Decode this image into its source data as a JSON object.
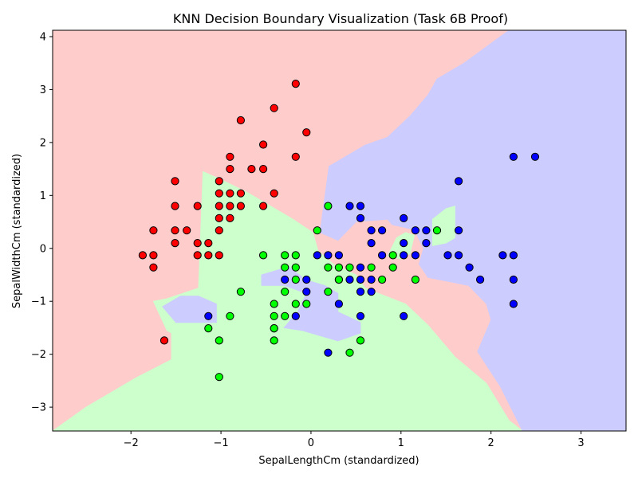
{
  "chart_data": {
    "type": "scatter",
    "title": "KNN Decision Boundary Visualization (Task 6B Proof)",
    "xlabel": "SepalLengthCm (standardized)",
    "ylabel": "SepalWidthCm (standardized)",
    "xlim": [
      -2.87,
      3.5
    ],
    "ylim": [
      -3.45,
      4.12
    ],
    "xticks": [
      -2,
      -1,
      0,
      1,
      2,
      3
    ],
    "yticks": [
      -3,
      -2,
      -1,
      0,
      1,
      2,
      3,
      4
    ],
    "xtick_labels": [
      "−2",
      "−1",
      "0",
      "1",
      "2",
      "3"
    ],
    "ytick_labels": [
      "−3",
      "−2",
      "−1",
      "0",
      "1",
      "2",
      "3",
      "4"
    ],
    "grid": false,
    "legend": "none",
    "region_colors": {
      "red": "#ffcccc",
      "green": "#ccffcc",
      "blue": "#ccccff"
    },
    "point_colors": {
      "red": "#ff0000",
      "green": "#00ff00",
      "blue": "#0000ff"
    },
    "regions": [
      {
        "class": "green",
        "polygon": [
          [
            -2.87,
            -3.45
          ],
          [
            2.35,
            -3.45
          ],
          [
            2.2,
            -3.25
          ],
          [
            1.95,
            -2.55
          ],
          [
            1.6,
            -2.05
          ],
          [
            1.3,
            -1.45
          ],
          [
            1.05,
            -1.05
          ],
          [
            0.6,
            -0.75
          ],
          [
            0.5,
            -0.5
          ],
          [
            0.25,
            -0.3
          ],
          [
            0.08,
            -0.05
          ],
          [
            0.02,
            0.3
          ],
          [
            -0.2,
            0.55
          ],
          [
            -0.45,
            0.8
          ],
          [
            -0.7,
            1.05
          ],
          [
            -1.0,
            1.3
          ],
          [
            -1.2,
            1.45
          ],
          [
            -1.25,
            -0.75
          ],
          [
            -1.6,
            -0.95
          ],
          [
            -1.75,
            -1.0
          ],
          [
            -1.6,
            -1.55
          ],
          [
            -1.55,
            -1.6
          ],
          [
            -1.55,
            -2.1
          ],
          [
            -1.95,
            -2.45
          ],
          [
            -2.5,
            -3.0
          ]
        ]
      },
      {
        "class": "blue",
        "polygon": [
          [
            2.35,
            -3.45
          ],
          [
            3.5,
            -3.45
          ],
          [
            3.5,
            4.12
          ],
          [
            2.2,
            4.12
          ],
          [
            1.7,
            3.5
          ],
          [
            1.4,
            3.2
          ],
          [
            1.3,
            2.9
          ],
          [
            1.1,
            2.5
          ],
          [
            0.85,
            2.1
          ],
          [
            0.6,
            1.95
          ],
          [
            0.45,
            1.8
          ],
          [
            0.2,
            1.55
          ],
          [
            0.1,
            0.3
          ],
          [
            0.3,
            0.15
          ],
          [
            0.5,
            0.5
          ],
          [
            0.85,
            0.55
          ],
          [
            0.9,
            0.45
          ],
          [
            1.15,
            0.35
          ],
          [
            1.25,
            0.0
          ],
          [
            1.2,
            -0.3
          ],
          [
            1.3,
            -0.55
          ],
          [
            1.75,
            -0.7
          ],
          [
            1.95,
            -1.05
          ],
          [
            2.0,
            -1.35
          ],
          [
            1.85,
            -1.95
          ],
          [
            2.1,
            -2.6
          ]
        ]
      },
      {
        "class": "blue",
        "polygon": [
          [
            -0.55,
            -0.5
          ],
          [
            -0.25,
            -0.35
          ],
          [
            -0.05,
            -0.6
          ],
          [
            0.15,
            -0.7
          ],
          [
            0.3,
            -0.85
          ],
          [
            0.3,
            -1.2
          ],
          [
            0.55,
            -1.4
          ],
          [
            0.55,
            -1.6
          ],
          [
            0.3,
            -1.75
          ],
          [
            -0.1,
            -1.55
          ],
          [
            -0.3,
            -1.5
          ],
          [
            -0.15,
            -1.2
          ],
          [
            -0.05,
            -0.85
          ],
          [
            -0.3,
            -0.7
          ],
          [
            -0.55,
            -0.7
          ]
        ]
      },
      {
        "class": "blue",
        "polygon": [
          [
            -1.65,
            -1.1
          ],
          [
            -1.45,
            -0.9
          ],
          [
            -1.25,
            -0.9
          ],
          [
            -1.05,
            -1.05
          ],
          [
            -1.05,
            -1.4
          ],
          [
            -1.5,
            -1.4
          ]
        ]
      },
      {
        "class": "green",
        "polygon": [
          [
            1.35,
            0.05
          ],
          [
            1.35,
            0.55
          ],
          [
            1.5,
            0.75
          ],
          [
            1.6,
            0.8
          ],
          [
            1.6,
            0.2
          ],
          [
            1.5,
            0.1
          ]
        ]
      },
      {
        "class": "green",
        "polygon": [
          [
            0.85,
            -0.15
          ],
          [
            0.95,
            0.2
          ],
          [
            1.05,
            0.3
          ],
          [
            1.15,
            0.25
          ],
          [
            1.1,
            -0.1
          ],
          [
            1.0,
            -0.2
          ]
        ]
      }
    ],
    "series": [
      {
        "class": "red",
        "points": [
          [
            -0.17,
            3.11
          ],
          [
            -0.41,
            2.65
          ],
          [
            -0.05,
            2.19
          ],
          [
            -0.78,
            2.42
          ],
          [
            -0.53,
            1.96
          ],
          [
            -0.17,
            1.73
          ],
          [
            -0.9,
            1.73
          ],
          [
            -0.9,
            1.5
          ],
          [
            -0.66,
            1.5
          ],
          [
            -0.53,
            1.5
          ],
          [
            -1.02,
            1.27
          ],
          [
            -1.51,
            1.27
          ],
          [
            -1.02,
            1.04
          ],
          [
            -0.9,
            1.04
          ],
          [
            -0.78,
            1.04
          ],
          [
            -0.41,
            1.04
          ],
          [
            -1.51,
            0.8
          ],
          [
            -1.26,
            0.8
          ],
          [
            -1.02,
            0.8
          ],
          [
            -0.9,
            0.8
          ],
          [
            -0.78,
            0.8
          ],
          [
            -0.53,
            0.8
          ],
          [
            -1.02,
            0.57
          ],
          [
            -0.9,
            0.57
          ],
          [
            -1.75,
            0.34
          ],
          [
            -1.51,
            0.34
          ],
          [
            -1.38,
            0.34
          ],
          [
            -1.02,
            0.34
          ],
          [
            -1.51,
            0.1
          ],
          [
            -1.26,
            0.1
          ],
          [
            -1.14,
            0.1
          ],
          [
            -1.87,
            -0.13
          ],
          [
            -1.75,
            -0.13
          ],
          [
            -1.26,
            -0.13
          ],
          [
            -1.14,
            -0.13
          ],
          [
            -1.02,
            -0.13
          ],
          [
            -1.75,
            -0.36
          ],
          [
            -1.63,
            -1.74
          ]
        ]
      },
      {
        "class": "green",
        "points": [
          [
            0.19,
            0.8
          ],
          [
            0.07,
            0.34
          ],
          [
            -0.53,
            -0.13
          ],
          [
            -0.29,
            -0.13
          ],
          [
            -0.17,
            -0.13
          ],
          [
            0.31,
            -0.36
          ],
          [
            0.43,
            -0.36
          ],
          [
            0.67,
            -0.36
          ],
          [
            0.91,
            -0.36
          ],
          [
            -0.29,
            -0.36
          ],
          [
            -0.17,
            -0.36
          ],
          [
            0.19,
            -0.36
          ],
          [
            1.4,
            0.34
          ],
          [
            0.91,
            -0.13
          ],
          [
            -0.17,
            -0.59
          ],
          [
            0.31,
            -0.59
          ],
          [
            0.31,
            -0.59
          ],
          [
            0.79,
            -0.59
          ],
          [
            1.16,
            -0.59
          ],
          [
            -0.78,
            -0.82
          ],
          [
            -0.29,
            -0.82
          ],
          [
            0.19,
            -0.82
          ],
          [
            -0.41,
            -1.05
          ],
          [
            -0.17,
            -1.05
          ],
          [
            -0.05,
            -1.05
          ],
          [
            -0.41,
            -1.28
          ],
          [
            -0.29,
            -1.28
          ],
          [
            -0.9,
            -1.28
          ],
          [
            -1.14,
            -1.51
          ],
          [
            -0.41,
            -1.51
          ],
          [
            -0.41,
            -1.51
          ],
          [
            -1.02,
            -1.74
          ],
          [
            -0.41,
            -1.74
          ],
          [
            0.55,
            -1.74
          ],
          [
            0.43,
            -1.97
          ],
          [
            -1.02,
            -2.43
          ]
        ]
      },
      {
        "class": "blue",
        "points": [
          [
            2.25,
            1.73
          ],
          [
            2.49,
            1.73
          ],
          [
            1.64,
            1.27
          ],
          [
            0.43,
            0.8
          ],
          [
            0.55,
            0.8
          ],
          [
            0.55,
            0.57
          ],
          [
            1.03,
            0.57
          ],
          [
            0.67,
            0.34
          ],
          [
            0.79,
            0.34
          ],
          [
            1.16,
            0.34
          ],
          [
            1.28,
            0.34
          ],
          [
            1.64,
            0.34
          ],
          [
            0.67,
            0.1
          ],
          [
            1.03,
            0.1
          ],
          [
            1.28,
            0.1
          ],
          [
            0.07,
            -0.13
          ],
          [
            0.19,
            -0.13
          ],
          [
            0.31,
            -0.13
          ],
          [
            0.79,
            -0.13
          ],
          [
            1.03,
            -0.13
          ],
          [
            1.16,
            -0.13
          ],
          [
            1.52,
            -0.13
          ],
          [
            1.64,
            -0.13
          ],
          [
            2.13,
            -0.13
          ],
          [
            2.25,
            -0.13
          ],
          [
            0.55,
            -0.36
          ],
          [
            1.76,
            -0.36
          ],
          [
            -0.29,
            -0.59
          ],
          [
            -0.05,
            -0.59
          ],
          [
            0.43,
            -0.59
          ],
          [
            0.55,
            -0.59
          ],
          [
            0.67,
            -0.59
          ],
          [
            1.88,
            -0.59
          ],
          [
            2.25,
            -0.59
          ],
          [
            -0.05,
            -0.82
          ],
          [
            0.55,
            -0.82
          ],
          [
            0.67,
            -0.82
          ],
          [
            0.31,
            -1.05
          ],
          [
            2.25,
            -1.05
          ],
          [
            -1.14,
            -1.28
          ],
          [
            -0.17,
            -1.28
          ],
          [
            0.55,
            -1.28
          ],
          [
            1.03,
            -1.28
          ],
          [
            0.19,
            -1.97
          ]
        ]
      }
    ]
  }
}
